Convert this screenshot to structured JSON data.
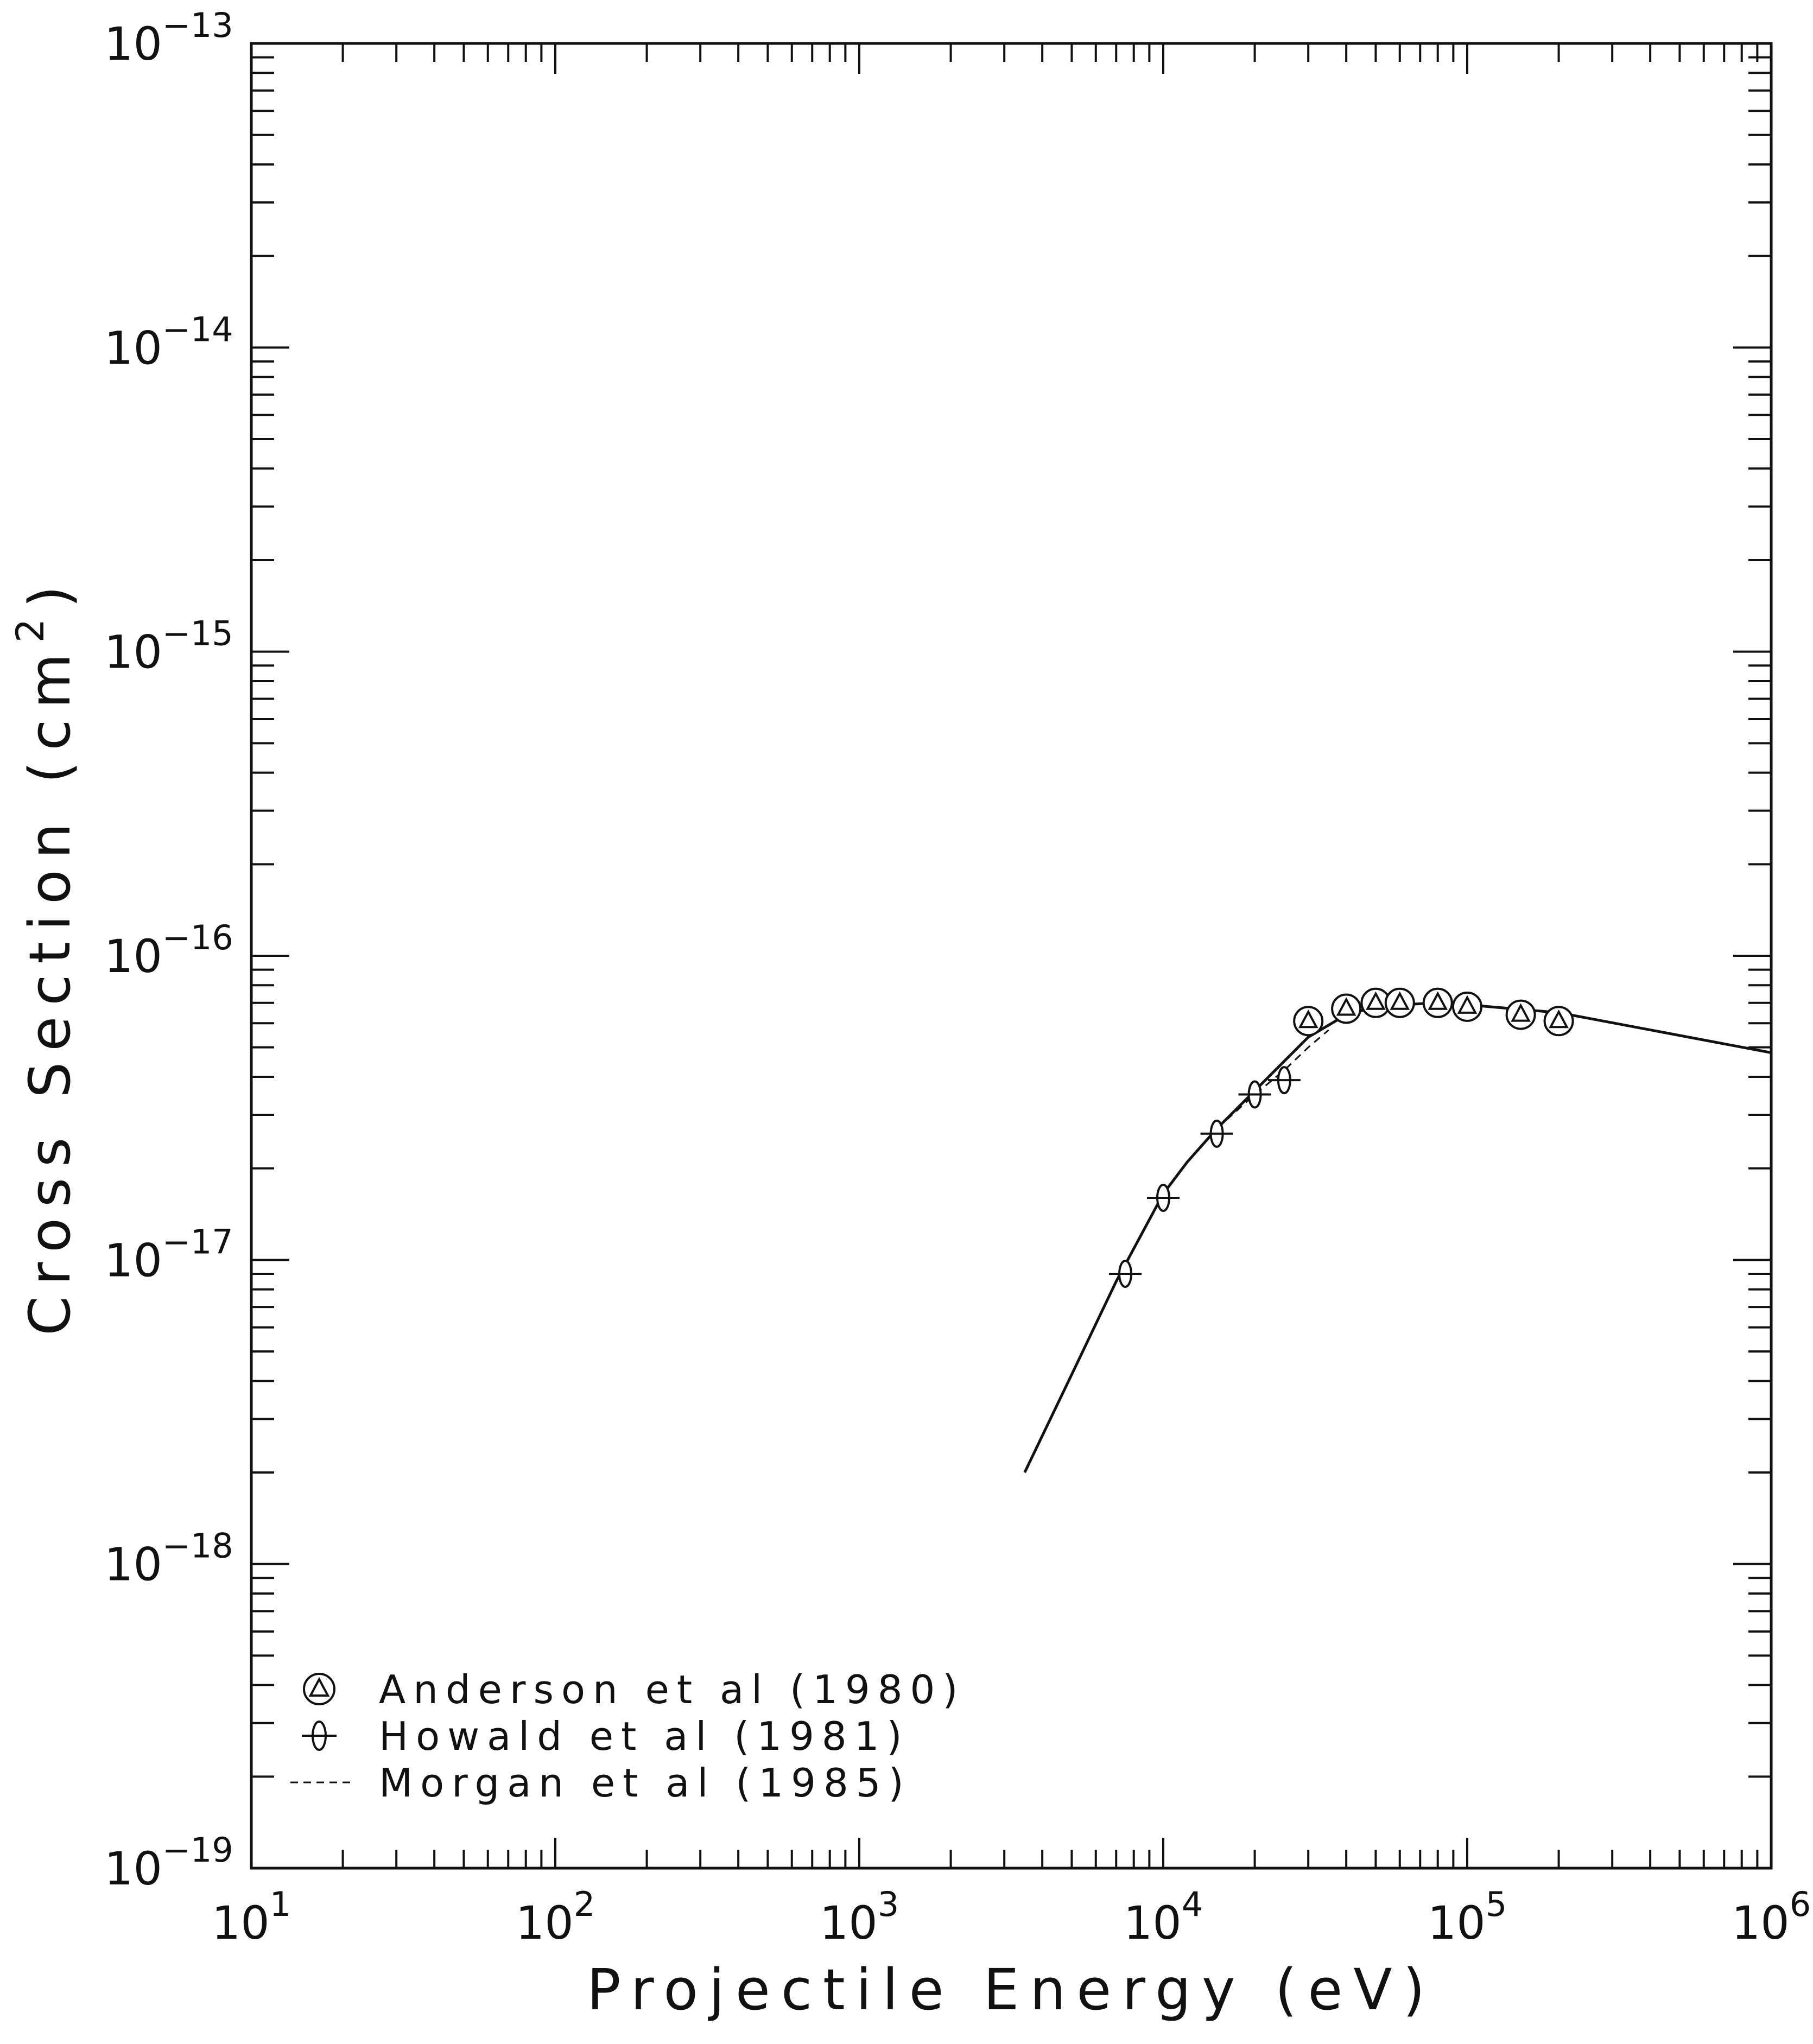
{
  "chart_data": {
    "type": "scatter",
    "xlabel": "Projectile Energy (eV)",
    "ylabel": "Cross Section (cm²)",
    "ylabel_main": "Cross Section (cm",
    "ylabel_sup": "2",
    "ylabel_close": ")",
    "x_scale": "log",
    "y_scale": "log",
    "xlim": [
      10,
      1000000
    ],
    "ylim": [
      1e-19,
      1e-13
    ],
    "grid": false,
    "legend_position": "bottom-left",
    "x_ticks": [
      {
        "base": "10",
        "exp": "1"
      },
      {
        "base": "10",
        "exp": "2"
      },
      {
        "base": "10",
        "exp": "3"
      },
      {
        "base": "10",
        "exp": "4"
      },
      {
        "base": "10",
        "exp": "5"
      },
      {
        "base": "10",
        "exp": "6"
      }
    ],
    "y_ticks": [
      {
        "base": "10",
        "exp": "−19"
      },
      {
        "base": "10",
        "exp": "−18"
      },
      {
        "base": "10",
        "exp": "−17"
      },
      {
        "base": "10",
        "exp": "−16"
      },
      {
        "base": "10",
        "exp": "−15"
      },
      {
        "base": "10",
        "exp": "−14"
      },
      {
        "base": "10",
        "exp": "−13"
      }
    ],
    "series": [
      {
        "name": "Anderson et al (1980)",
        "marker": "circle-triangle",
        "x": [
          30000,
          40000,
          50000,
          60000,
          80000,
          100000,
          150000,
          200000
        ],
        "y": [
          6.1e-17,
          6.7e-17,
          7e-17,
          7e-17,
          7e-17,
          6.8e-17,
          6.4e-17,
          6.1e-17
        ]
      },
      {
        "name": "Howald et al (1981)",
        "marker": "cross-ellipse",
        "x": [
          7500,
          10000,
          15000,
          20000,
          25000
        ],
        "y": [
          9e-18,
          1.6e-17,
          2.6e-17,
          3.5e-17,
          3.9e-17
        ]
      },
      {
        "name": "Morgan et al (1985)",
        "style": "dashed",
        "x": [
          15000,
          20000,
          25000,
          30000,
          35000
        ],
        "y": [
          2.7e-17,
          3.5e-17,
          4.2e-17,
          5e-17,
          5.7e-17
        ]
      },
      {
        "style": "solid",
        "x": [
          3500,
          5000,
          7000,
          10000,
          12000,
          15000,
          20000,
          25000,
          30000,
          40000,
          50000,
          60000,
          80000,
          100000,
          200000,
          1000000
        ],
        "y": [
          2e-18,
          4.2e-18,
          8.5e-18,
          1.65e-17,
          2.1e-17,
          2.7e-17,
          3.6e-17,
          4.5e-17,
          5.4e-17,
          6.4e-17,
          6.8e-17,
          6.9e-17,
          7e-17,
          6.9e-17,
          6.5e-17,
          4.8e-17
        ]
      }
    ],
    "colors": {
      "ink": "#111111",
      "background": "#ffffff"
    }
  }
}
